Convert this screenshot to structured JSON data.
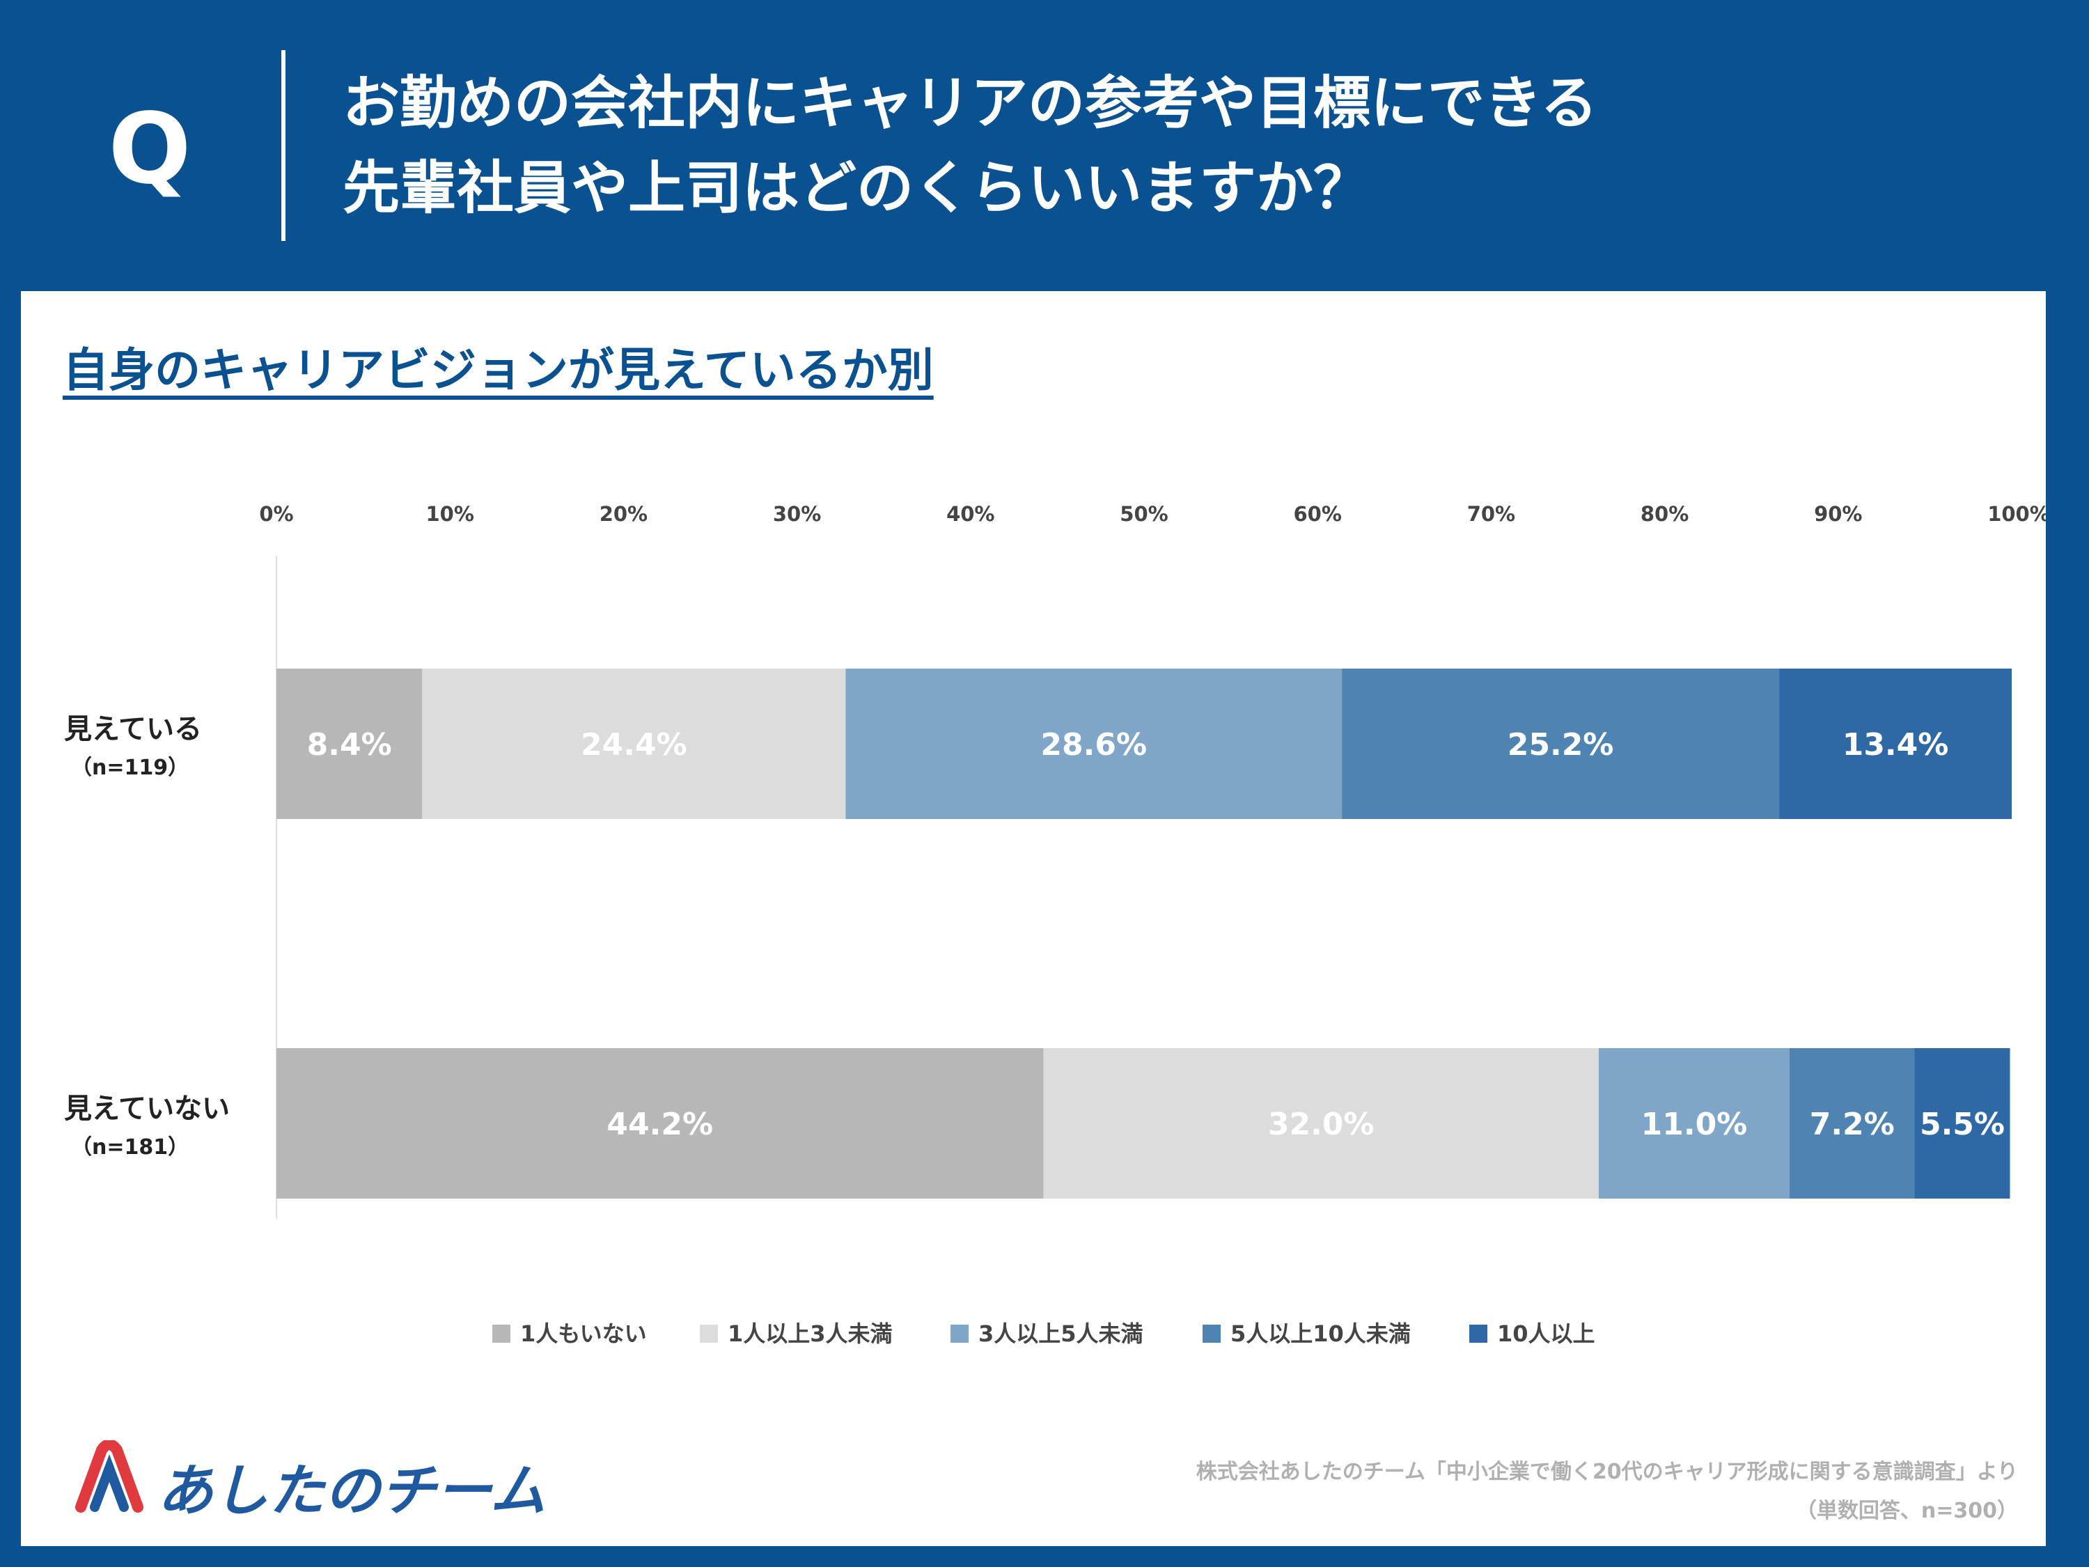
{
  "header": {
    "q_mark": "Q",
    "question_line1": "お勤めの会社内にキャリアの参考や目標にできる",
    "question_line2": "先輩社員や上司はどのくらいいますか？"
  },
  "panel": {
    "subtitle": "自身のキャリアビジョンが見えているか別"
  },
  "chart_data": {
    "type": "bar",
    "orientation": "horizontal",
    "stacked": true,
    "x_ticks": [
      "0%",
      "10%",
      "20%",
      "30%",
      "40%",
      "50%",
      "60%",
      "70%",
      "80%",
      "90%",
      "100%"
    ],
    "xlim": [
      0,
      100
    ],
    "categories": [
      {
        "label": "見えている",
        "n": "（n=119）"
      },
      {
        "label": "見えていない",
        "n": "（n=181）"
      }
    ],
    "series": [
      {
        "name": "1人もいない",
        "color": "#b7b7b7",
        "values": [
          8.4,
          44.2
        ],
        "labels": [
          "8.4%",
          "44.2%"
        ]
      },
      {
        "name": "1人以上3人未満",
        "color": "#dcdcdc",
        "values": [
          24.4,
          32.0
        ],
        "labels": [
          "24.4%",
          "32.0%"
        ]
      },
      {
        "name": "3人以上5人未満",
        "color": "#7fa6c8",
        "values": [
          28.6,
          11.0
        ],
        "labels": [
          "28.6%",
          "11.0%"
        ]
      },
      {
        "name": "5人以上10人未満",
        "color": "#4f83b1",
        "values": [
          25.2,
          7.2
        ],
        "labels": [
          "25.2%",
          "7.2%"
        ]
      },
      {
        "name": "10人以上",
        "color": "#2e68a5",
        "values": [
          13.4,
          5.5
        ],
        "labels": [
          "13.4%",
          "5.5%"
        ]
      }
    ],
    "legend_position": "bottom"
  },
  "footer": {
    "logo_text": "あしたのチーム",
    "source_line1": "株式会社あしたのチーム「中小企業で働く20代のキャリア形成に関する意識調査」より",
    "source_line2": "（単数回答、n=300）"
  },
  "colors": {
    "brand_blue": "#0a5192",
    "logo_red": "#e03a3e",
    "logo_blue": "#1f5aa0"
  }
}
